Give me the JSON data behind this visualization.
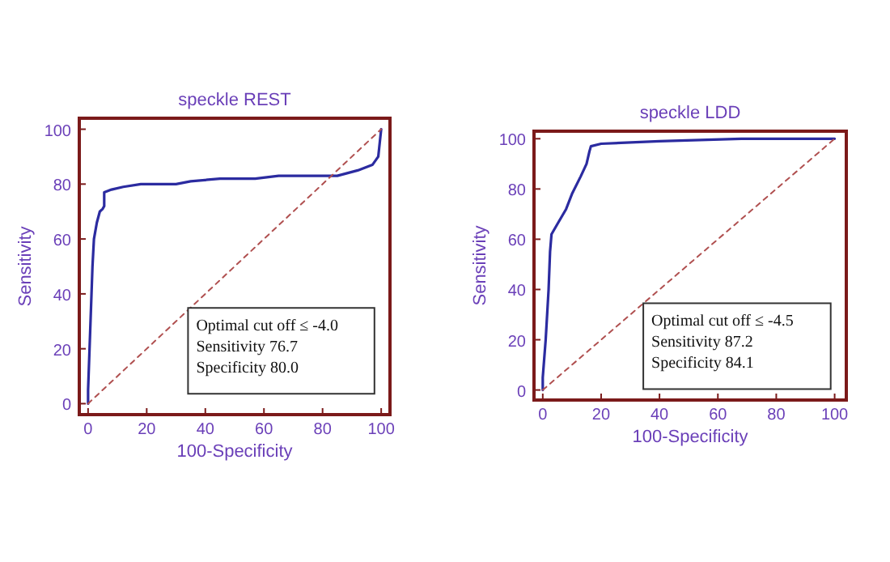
{
  "chart_data": [
    {
      "type": "line",
      "title": "speckle REST",
      "xlabel": "100-Specificity",
      "ylabel": "Sensitivity",
      "xlim": [
        -3,
        103
      ],
      "ylim": [
        -4,
        104
      ],
      "xticks": [
        0,
        20,
        40,
        60,
        80,
        100
      ],
      "yticks": [
        0,
        20,
        40,
        60,
        80,
        100
      ],
      "annotations": [
        "Optimal cut off  ≤ -4.0",
        "Sensitivity 76.7",
        "Specificity 80.0"
      ],
      "series": [
        {
          "color": "#2b2ba0",
          "x": [
            0,
            0,
            0.5,
            1,
            1.5,
            2,
            3,
            4,
            5,
            5.5,
            5.5,
            8,
            12,
            18,
            30,
            35,
            45,
            57,
            65,
            85,
            92,
            97,
            99,
            100
          ],
          "values": [
            0,
            5,
            20,
            35,
            50,
            60,
            66,
            70,
            71,
            72,
            77,
            78,
            79,
            80,
            80,
            81,
            82,
            82,
            83,
            83,
            85,
            87,
            90,
            100
          ]
        },
        {
          "color": "#b05050",
          "line_style": "dashed",
          "x": [
            0,
            100
          ],
          "values": [
            0,
            100
          ]
        }
      ]
    },
    {
      "type": "line",
      "title": "speckle  LDD",
      "xlabel": "100-Specificity",
      "ylabel": "Sensitivity",
      "xlim": [
        -3,
        104
      ],
      "ylim": [
        -4,
        103
      ],
      "xticks": [
        0,
        20,
        40,
        60,
        80,
        100
      ],
      "yticks": [
        0,
        20,
        40,
        60,
        80,
        100
      ],
      "annotations": [
        "Optimal cut off  ≤ -4.5",
        "Sensitivity 87.2",
        "Specificity 84.1"
      ],
      "series": [
        {
          "color": "#2b2ba0",
          "x": [
            0,
            0,
            1,
            2,
            2.5,
            3,
            5,
            8,
            10,
            13,
            15,
            16,
            16.5,
            20,
            40,
            68,
            100
          ],
          "values": [
            0,
            5,
            20,
            40,
            55,
            62,
            66,
            72,
            78,
            85,
            90,
            95,
            97,
            98,
            99,
            100,
            100
          ]
        },
        {
          "color": "#b05050",
          "line_style": "dashed",
          "x": [
            0,
            100
          ],
          "values": [
            0,
            100
          ]
        }
      ]
    }
  ]
}
